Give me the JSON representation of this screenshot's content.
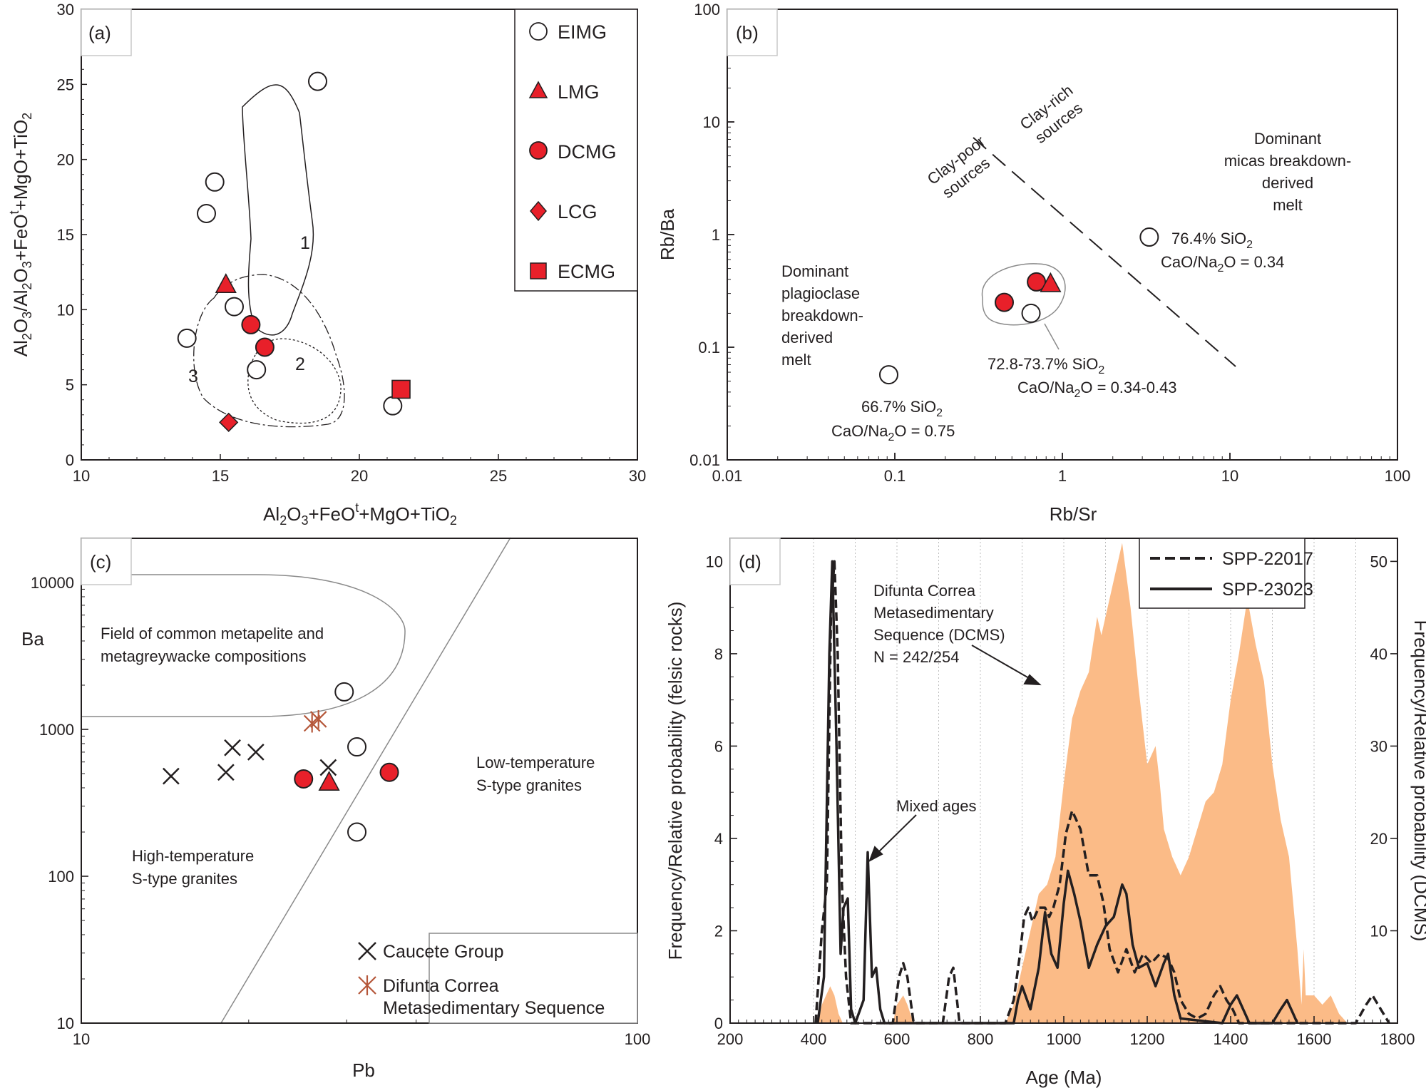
{
  "chart_data": [
    {
      "panel": "a",
      "type": "scatter",
      "panel_label": "(a)",
      "xlabel": "Al2O3+FeOt+MgO+TiO2",
      "ylabel": "Al2O3/Al2O3+FeOt+MgO+TiO2",
      "xlim": [
        10,
        30
      ],
      "ylim": [
        0,
        30
      ],
      "xticks": [
        "10",
        "15",
        "20",
        "25",
        "30"
      ],
      "yticks": [
        "0",
        "5",
        "10",
        "15",
        "20",
        "25",
        "30"
      ],
      "legend": [
        "EIMG",
        "LMG",
        "DCMG",
        "LCG",
        "ECMG"
      ],
      "field_labels": [
        "1",
        "2",
        "3"
      ],
      "series": [
        {
          "name": "EIMG",
          "marker": "circle-open",
          "points": [
            [
              18.5,
              25.2
            ],
            [
              14.8,
              18.5
            ],
            [
              14.5,
              16.4
            ],
            [
              15.5,
              10.2
            ],
            [
              13.8,
              8.1
            ],
            [
              16.3,
              6.0
            ],
            [
              21.2,
              3.6
            ]
          ]
        },
        {
          "name": "LMG",
          "marker": "triangle",
          "points": [
            [
              15.2,
              11.7
            ]
          ]
        },
        {
          "name": "DCMG",
          "marker": "circle-filled",
          "points": [
            [
              16.1,
              9.0
            ],
            [
              16.6,
              7.5
            ]
          ]
        },
        {
          "name": "LCG",
          "marker": "diamond",
          "points": [
            [
              15.3,
              2.5
            ]
          ]
        },
        {
          "name": "ECMG",
          "marker": "square",
          "points": [
            [
              21.5,
              4.7
            ]
          ]
        }
      ]
    },
    {
      "panel": "b",
      "type": "scatter",
      "panel_label": "(b)",
      "xlabel": "Rb/Sr",
      "ylabel": "Rb/Ba",
      "xscale": "log",
      "yscale": "log",
      "xlim": [
        0.01,
        100
      ],
      "ylim": [
        0.01,
        100
      ],
      "xticks": [
        "0.01",
        "0.1",
        "1",
        "10",
        "100"
      ],
      "yticks": [
        "0.01",
        "0.1",
        "1",
        "10",
        "100"
      ],
      "annotations": {
        "clay_poor_1": "Clay-poor",
        "clay_poor_2": "sources",
        "clay_rich_1": "Clay-rich",
        "clay_rich_2": "sources",
        "micas_1": "Dominant",
        "micas_2": "micas breakdown-",
        "micas_3": "derived",
        "micas_4": "melt",
        "plag_1": "Dominant",
        "plag_2": "plagioclase",
        "plag_3": "breakdown-",
        "plag_4": "derived",
        "plag_5": "melt",
        "s764_si": "76.4% SiO2",
        "s764_ca": "CaO/Na2O = 0.34",
        "s728_si": "72.8-73.7% SiO2",
        "s728_ca": "CaO/Na2O = 0.34-0.43",
        "s667_si": "66.7% SiO2",
        "s667_ca": "CaO/Na2O = 0.75"
      },
      "series": [
        {
          "name": "EIMG",
          "marker": "circle-open",
          "points": [
            [
              3.3,
              0.95
            ],
            [
              0.65,
              0.2
            ],
            [
              0.092,
              0.057
            ]
          ]
        },
        {
          "name": "DCMG",
          "marker": "circle-filled",
          "points": [
            [
              0.45,
              0.25
            ],
            [
              0.7,
              0.38
            ]
          ]
        },
        {
          "name": "LMG",
          "marker": "triangle",
          "points": [
            [
              0.85,
              0.37
            ]
          ]
        }
      ]
    },
    {
      "panel": "c",
      "type": "scatter",
      "panel_label": "(c)",
      "xlabel": "Pb",
      "ylabel": "Ba",
      "xscale": "log",
      "yscale": "log",
      "xlim": [
        10,
        100
      ],
      "ylim": [
        10,
        20000
      ],
      "xticks": [
        "10",
        "100"
      ],
      "yticks": [
        "10",
        "100",
        "1000",
        "10000"
      ],
      "field_text": [
        "Field of common metapelite and",
        "metagreywacke compositions"
      ],
      "low_temp": [
        "Low-temperature",
        "S-type granites"
      ],
      "high_temp": [
        "High-temperature",
        "S-type granites"
      ],
      "legend": [
        "Caucete Group",
        "Difunta Correa",
        "Metasedimentary Sequence"
      ],
      "series": [
        {
          "name": "Caucete Group",
          "marker": "x",
          "points": [
            [
              14.5,
              480
            ],
            [
              18.2,
              510
            ],
            [
              18.7,
              750
            ],
            [
              20.6,
              700
            ],
            [
              27.8,
              550
            ]
          ]
        },
        {
          "name": "Difunta Correa Metasedimentary Sequence",
          "marker": "asterisk",
          "points": [
            [
              26.0,
              1100
            ],
            [
              26.7,
              1170
            ]
          ]
        },
        {
          "name": "EIMG",
          "marker": "circle-open",
          "points": [
            [
              29.7,
              1800
            ],
            [
              31.3,
              760
            ],
            [
              31.3,
              200
            ]
          ]
        },
        {
          "name": "DCMG",
          "marker": "circle-filled",
          "points": [
            [
              25.1,
              460
            ],
            [
              35.8,
              510
            ]
          ]
        },
        {
          "name": "LMG",
          "marker": "triangle",
          "points": [
            [
              27.9,
              440
            ]
          ]
        }
      ]
    },
    {
      "panel": "d",
      "type": "area",
      "panel_label": "(d)",
      "xlabel": "Age (Ma)",
      "ylabel_left": "Frequency/Relative probability (felsic rocks)",
      "ylabel_right": "Frequency/Relative probability (DCMS)",
      "xlim": [
        200,
        1800
      ],
      "ylim_left": [
        0,
        10.5
      ],
      "ylim_right": [
        0,
        52.5
      ],
      "xticks": [
        "200",
        "400",
        "600",
        "800",
        "1000",
        "1200",
        "1400",
        "1600",
        "1800"
      ],
      "yticks_left": [
        "0",
        "2",
        "4",
        "6",
        "8",
        "10"
      ],
      "yticks_right": [
        "10",
        "20",
        "30",
        "40",
        "50"
      ],
      "legend": [
        "SPP-22017",
        "SPP-23023"
      ],
      "annotations": {
        "dcms_1": "Difunta Correa",
        "dcms_2": "Metasedimentary",
        "dcms_3": "Sequence (DCMS)",
        "dcms_4": "N = 242/254",
        "mixed": "Mixed ages"
      },
      "series": [
        {
          "name": "DCMS",
          "axis": "right",
          "style": "filled-orange",
          "x": [
            410,
            420,
            440,
            450,
            460,
            470,
            590,
            600,
            615,
            625,
            640,
            860,
            880,
            900,
            920,
            940,
            960,
            980,
            1000,
            1020,
            1040,
            1060,
            1080,
            1090,
            1100,
            1120,
            1140,
            1160,
            1180,
            1200,
            1220,
            1230,
            1240,
            1260,
            1280,
            1300,
            1320,
            1340,
            1360,
            1380,
            1400,
            1420,
            1440,
            1460,
            1480,
            1500,
            1520,
            1540,
            1560,
            1570,
            1575,
            1580,
            1600,
            1620,
            1640,
            1660,
            1680
          ],
          "y": [
            0,
            2,
            4,
            3,
            1,
            0,
            0,
            2,
            3,
            2,
            0,
            0,
            2,
            6,
            10,
            14,
            15,
            18,
            26,
            33,
            36,
            38,
            44,
            42,
            44,
            48,
            52,
            45,
            36,
            28,
            30,
            26,
            21,
            18,
            16,
            18,
            21,
            24,
            25,
            28,
            35,
            40,
            46,
            41,
            37,
            28,
            22,
            18,
            8,
            2,
            8,
            3,
            3,
            2,
            3,
            1,
            0
          ]
        },
        {
          "name": "SPP-22017",
          "axis": "left",
          "style": "dashed",
          "x": [
            405,
            420,
            432,
            442,
            450,
            458,
            468,
            478,
            490,
            590,
            605,
            615,
            625,
            640,
            710,
            725,
            735,
            750,
            860,
            880,
            895,
            905,
            915,
            925,
            940,
            955,
            965,
            975,
            990,
            1005,
            1020,
            1040,
            1060,
            1080,
            1095,
            1110,
            1130,
            1150,
            1170,
            1190,
            1210,
            1230,
            1250,
            1265,
            1280,
            1300,
            1320,
            1340,
            1360,
            1375,
            1390,
            1405,
            1420,
            1700,
            1725,
            1740,
            1760,
            1780
          ],
          "y": [
            0,
            2,
            3,
            9,
            10,
            8,
            3,
            1,
            0,
            0,
            1,
            1.3,
            1,
            0,
            0,
            1,
            1.2,
            0,
            0,
            0.5,
            1.5,
            2.3,
            2.5,
            2.2,
            2.5,
            2.5,
            2.3,
            2.5,
            3,
            4.1,
            4.6,
            4.2,
            3.2,
            3.2,
            2.6,
            1.6,
            1.1,
            1.6,
            1.1,
            1.5,
            1.3,
            1.5,
            1.4,
            1.1,
            0.5,
            0.2,
            0.1,
            0.2,
            0.6,
            0.8,
            0.5,
            0.3,
            0,
            0,
            0.4,
            0.6,
            0.3,
            0
          ]
        },
        {
          "name": "SPP-23023",
          "axis": "left",
          "style": "solid",
          "x": [
            410,
            425,
            438,
            445,
            455,
            465,
            472,
            482,
            490,
            500,
            520,
            530,
            540,
            550,
            560,
            570,
            880,
            890,
            900,
            920,
            940,
            955,
            970,
            985,
            1000,
            1010,
            1025,
            1040,
            1060,
            1080,
            1100,
            1120,
            1140,
            1150,
            1165,
            1180,
            1200,
            1220,
            1240,
            1250,
            1265,
            1280,
            1380,
            1400,
            1415,
            1430,
            1445,
            1500,
            1520,
            1535,
            1550,
            1560
          ],
          "y": [
            0,
            1,
            8,
            10,
            6,
            1.5,
            2.5,
            2.7,
            0.3,
            0,
            0.5,
            3.7,
            1,
            1.2,
            0.3,
            0,
            0,
            0.5,
            0.8,
            0.3,
            1.2,
            2.4,
            1.5,
            1.2,
            2.6,
            3.3,
            2.8,
            2.2,
            1.2,
            1.7,
            2.1,
            2.3,
            3.0,
            2.8,
            1.7,
            1.2,
            1.3,
            0.8,
            1.3,
            1.5,
            0.6,
            0.1,
            0,
            0.4,
            0.6,
            0.3,
            0,
            0,
            0.3,
            0.5,
            0.2,
            0
          ]
        }
      ]
    }
  ],
  "colors": {
    "marker_red": "#e8202a",
    "dcms_fill": "#fbbb87",
    "asterisk": "#b5573a",
    "ink": "#231f20",
    "field_line": "#8a8a8a"
  }
}
